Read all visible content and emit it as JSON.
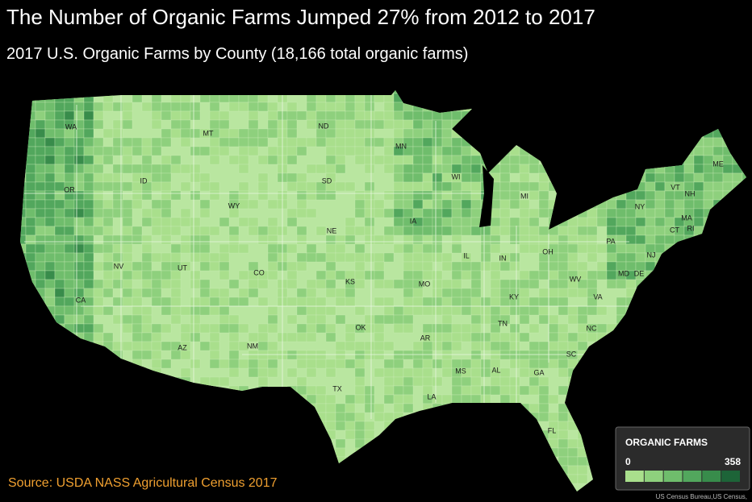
{
  "header": {
    "title": "The Number of Organic Farms Jumped 27% from 2012 to 2017",
    "subtitle": "2017 U.S. Organic Farms by County (18,166 total organic farms)"
  },
  "map": {
    "base_color": "#b9e6a0",
    "states": [
      "WA",
      "MT",
      "ND",
      "MN",
      "WI",
      "MI",
      "ME",
      "VT",
      "NH",
      "NY",
      "MA",
      "CT",
      "RI",
      "PA",
      "NJ",
      "MD",
      "DE",
      "OR",
      "ID",
      "WY",
      "SD",
      "IA",
      "NE",
      "IL",
      "IN",
      "OH",
      "WV",
      "VA",
      "KY",
      "NV",
      "UT",
      "CO",
      "KS",
      "MO",
      "CA",
      "TN",
      "NC",
      "AZ",
      "NM",
      "OK",
      "AR",
      "SC",
      "MS",
      "AL",
      "GA",
      "TX",
      "LA",
      "FL"
    ]
  },
  "legend": {
    "title": "ORGANIC FARMS",
    "min": 0,
    "max": 358,
    "colors": [
      "#a9df8c",
      "#8ed07d",
      "#6fbd6c",
      "#52a75d",
      "#388c4b",
      "#1d6438"
    ]
  },
  "source": "Source: USDA NASS Agricultural Census 2017",
  "credit": "US Census Bureau,US Census,"
}
